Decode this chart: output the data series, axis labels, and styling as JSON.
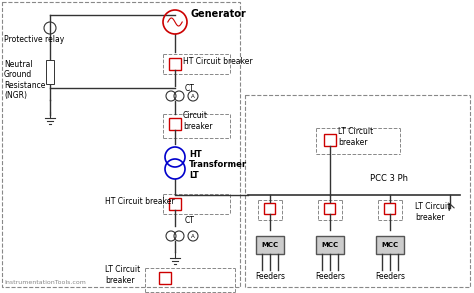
{
  "bg_color": "#f5f5f5",
  "line_color": "#333333",
  "red_color": "#cc0000",
  "blue_color": "#0000cc",
  "dashed_color": "#888888",
  "title": "Generator",
  "watermark": "InstrumentationTools.com",
  "labels": {
    "generator": "Generator",
    "ht_cb1": "HT Circuit breaker",
    "ct1": "CT",
    "cb1": "Circuit\nbreaker",
    "ht_transformer": "HT\nTransformer\nLT",
    "protective_relay": "Protective relay",
    "ngr": "Neutral\nGround\nResistance\n(NGR)",
    "ht_cb2": "HT Circuit breaker",
    "ct2": "CT",
    "lt_cb1": "LT Circuit\nbreaker",
    "lt_cb2": "LT Circuit\nbreaker",
    "lt_cb3": "LT Circuit\nbreaker",
    "pcc": "PCC 3 Ph",
    "mcc1": "MCC",
    "mcc2": "MCC",
    "mcc3": "MCC",
    "feeders1": "Feeders",
    "feeders2": "Feeders",
    "feeders3": "Feeders"
  }
}
